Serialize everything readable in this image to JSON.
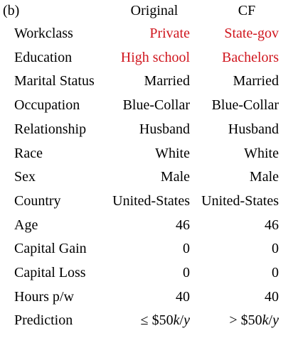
{
  "panel": {
    "tag": "(b)",
    "headers": {
      "original": "Original",
      "cf": "CF"
    },
    "highlight_color": "#d0161e",
    "rows": [
      {
        "label": "Workclass",
        "original": "Private",
        "cf": "State-gov",
        "changed": true
      },
      {
        "label": "Education",
        "original": "High school",
        "cf": "Bachelors",
        "changed": true
      },
      {
        "label": "Marital Status",
        "original": "Married",
        "cf": "Married",
        "changed": false
      },
      {
        "label": "Occupation",
        "original": "Blue-Collar",
        "cf": "Blue-Collar",
        "changed": false
      },
      {
        "label": "Relationship",
        "original": "Husband",
        "cf": "Husband",
        "changed": false
      },
      {
        "label": "Race",
        "original": "White",
        "cf": "White",
        "changed": false
      },
      {
        "label": "Sex",
        "original": "Male",
        "cf": "Male",
        "changed": false
      },
      {
        "label": "Country",
        "original": "United-States",
        "cf": "United-States",
        "changed": false
      },
      {
        "label": "Age",
        "original": "46",
        "cf": "46",
        "changed": false
      },
      {
        "label": "Capital Gain",
        "original": "0",
        "cf": "0",
        "changed": false
      },
      {
        "label": "Capital Loss",
        "original": "0",
        "cf": "0",
        "changed": false
      },
      {
        "label": "Hours p/w",
        "original": "40",
        "cf": "40",
        "changed": false
      }
    ],
    "prediction": {
      "label": "Prediction",
      "original": {
        "op": "≤",
        "amount": "$50",
        "k": "k",
        "slash": "/",
        "y": "y"
      },
      "cf": {
        "op": ">",
        "amount": "$50",
        "k": "k",
        "slash": "/",
        "y": "y"
      }
    }
  }
}
